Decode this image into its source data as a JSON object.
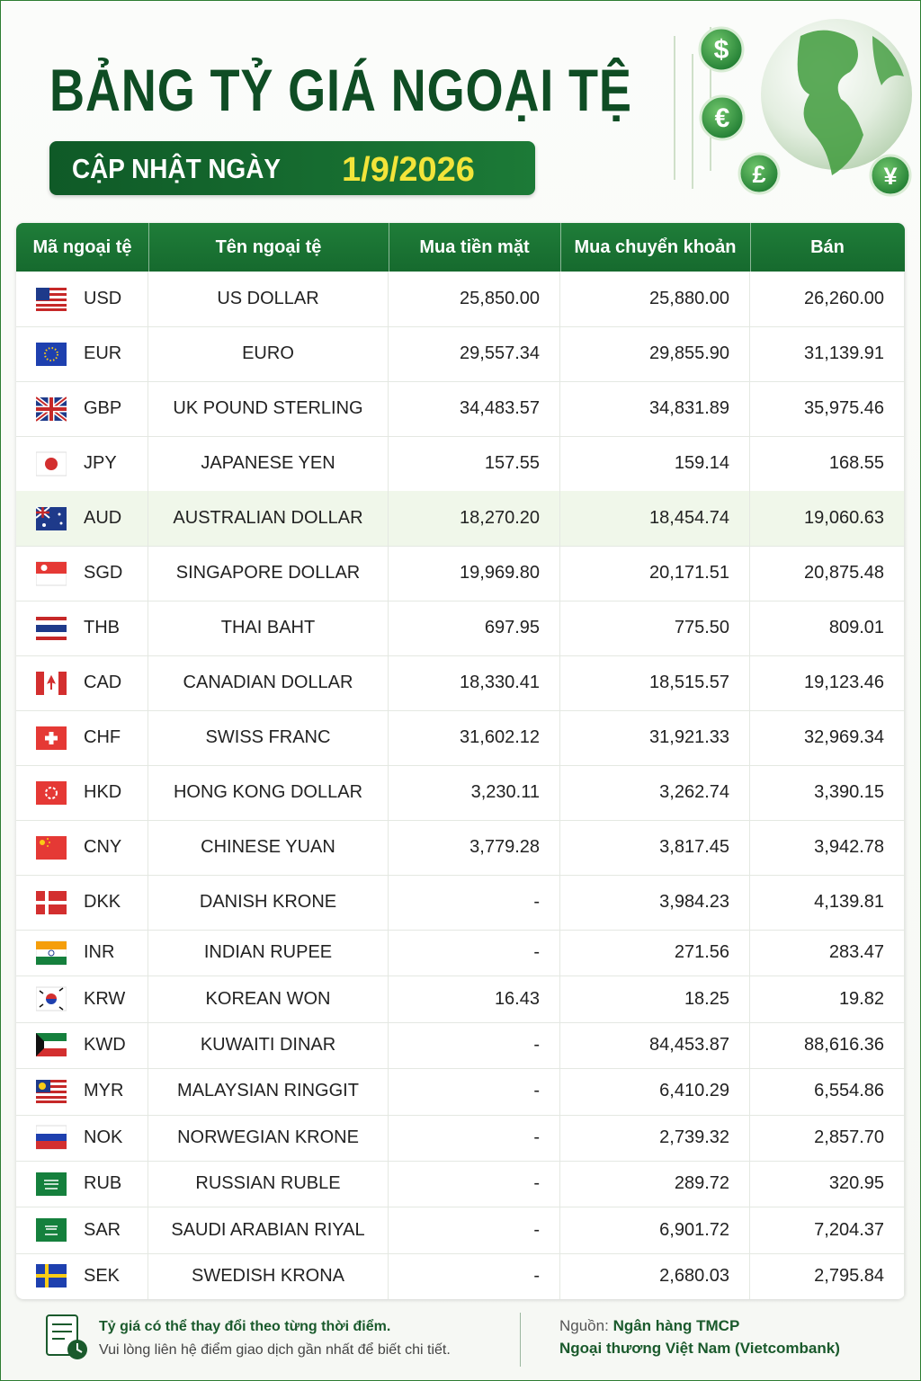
{
  "header": {
    "title": "BẢNG TỶ GIÁ NGOẠI TỆ",
    "date_label": "CẬP NHẬT NGÀY",
    "date": "1/9/2026",
    "currency_symbols": [
      "$",
      "€",
      "£",
      "¥"
    ]
  },
  "table": {
    "columns": [
      "Mã ngoại tệ",
      "Tên ngoại tệ",
      "Mua tiền mặt",
      "Mua chuyển khoản",
      "Bán"
    ],
    "rows": [
      [
        "USD",
        "US DOLLAR",
        "25,850.00",
        "25,880.00",
        "26,260.00"
      ],
      [
        "EUR",
        "EURO",
        "29,557.34",
        "29,855.90",
        "31,139.91"
      ],
      [
        "GBP",
        "UK POUND STERLING",
        "34,483.57",
        "34,831.89",
        "35,975.46"
      ],
      [
        "JPY",
        "JAPANESE YEN",
        "157.55",
        "159.14",
        "168.55"
      ],
      [
        "AUD",
        "AUSTRALIAN DOLLAR",
        "18,270.20",
        "18,454.74",
        "19,060.63"
      ],
      [
        "SGD",
        "SINGAPORE DOLLAR",
        "19,969.80",
        "20,171.51",
        "20,875.48"
      ],
      [
        "THB",
        "THAI BAHT",
        "697.95",
        "775.50",
        "809.01"
      ],
      [
        "CAD",
        "CANADIAN DOLLAR",
        "18,330.41",
        "18,515.57",
        "19,123.46"
      ],
      [
        "CHF",
        "SWISS FRANC",
        "31,602.12",
        "31,921.33",
        "32,969.34"
      ],
      [
        "HKD",
        "HONG KONG DOLLAR",
        "3,230.11",
        "3,262.74",
        "3,390.15"
      ],
      [
        "CNY",
        "CHINESE YUAN",
        "3,779.28",
        "3,817.45",
        "3,942.78"
      ],
      [
        "DKK",
        "DANISH KRONE",
        "-",
        "3,984.23",
        "4,139.81"
      ],
      [
        "INR",
        "INDIAN RUPEE",
        "-",
        "271.56",
        "283.47"
      ],
      [
        "KRW",
        "KOREAN WON",
        "16.43",
        "18.25",
        "19.82"
      ],
      [
        "KWD",
        "KUWAITI DINAR",
        "-",
        "84,453.87",
        "88,616.36"
      ],
      [
        "MYR",
        "MALAYSIAN RINGGIT",
        "-",
        "6,410.29",
        "6,554.86"
      ],
      [
        "NOK",
        "NORWEGIAN KRONE",
        "-",
        "2,739.32",
        "2,857.70"
      ],
      [
        "RUB",
        "RUSSIAN RUBLE",
        "-",
        "289.72",
        "320.95"
      ],
      [
        "SAR",
        "SAUDI ARABIAN RIYAL",
        "-",
        "6,901.72",
        "7,204.37"
      ],
      [
        "SEK",
        "SWEDISH KRONA",
        "-",
        "2,680.03",
        "2,795.84"
      ]
    ]
  },
  "footer": {
    "note_title": "Tỷ giá có thể thay đổi theo từng thời điểm.",
    "note_text": "Vui lòng liên hệ điểm giao dịch gần nhất để biết chi tiết.",
    "source_label": "Nguồn:",
    "source_lines": [
      "Ngân hàng TMCP",
      "Ngoại thương Việt Nam (Vietcombank)"
    ]
  }
}
